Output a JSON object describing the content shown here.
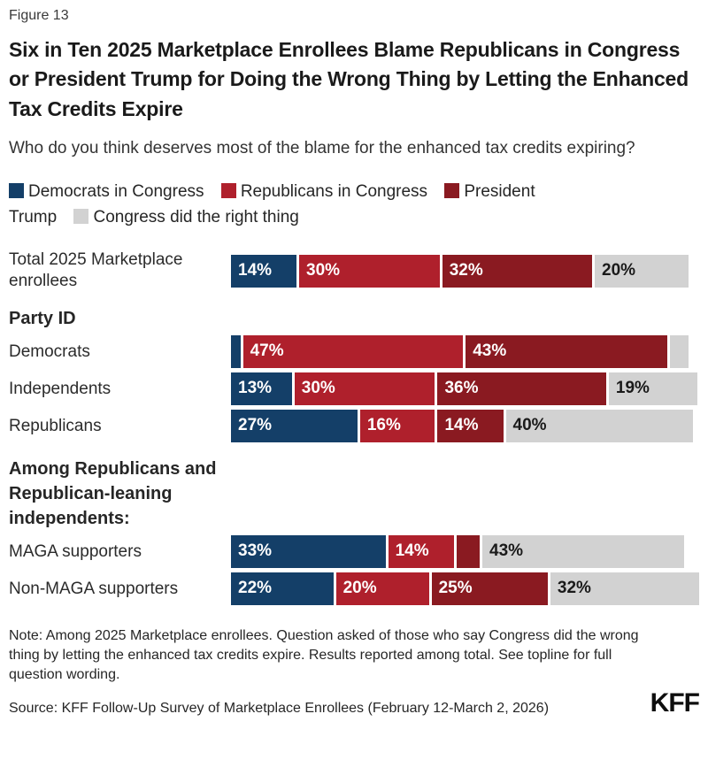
{
  "figure_label": "Figure 13",
  "title": "Six in Ten 2025 Marketplace Enrollees Blame Republicans in Congress or President Trump for Doing the Wrong Thing by Letting the Enhanced Tax Credits Expire",
  "subtitle": "Who do you think deserves most of the blame for the enhanced tax credits expiring?",
  "colors": {
    "democrats": "#143F68",
    "republicans": "#AF202C",
    "trump": "#8A1A21",
    "right_thing": "#D2D2D2",
    "value_label_on_color": "#FFFFFF",
    "value_label_on_gray": "#1A1A1A"
  },
  "legend": {
    "items": [
      {
        "label": "Democrats in Congress",
        "color_key": "democrats"
      },
      {
        "label": "Republicans in Congress",
        "color_key": "republicans"
      },
      {
        "label": "President Trump",
        "color_key": "trump"
      },
      {
        "label": "Congress did the right thing",
        "color_key": "right_thing"
      }
    ]
  },
  "chart_data": {
    "type": "bar",
    "variant": "horizontal-stacked",
    "unit": "percent",
    "x_range": [
      0,
      100
    ],
    "grid": false,
    "legend_position": "top",
    "series_names": [
      "Democrats in Congress",
      "Republicans in Congress",
      "President Trump",
      "Congress did the right thing"
    ],
    "rows": [
      {
        "kind": "bar",
        "category": "Total 2025 Marketplace enrollees",
        "values": [
          14,
          30,
          32,
          20
        ],
        "value_labels": [
          "14%",
          "30%",
          "32%",
          "20%"
        ]
      },
      {
        "kind": "section",
        "label": "Party ID"
      },
      {
        "kind": "bar",
        "category": "Democrats",
        "values": [
          2,
          47,
          43,
          4
        ],
        "value_labels": [
          "",
          "47%",
          "43%",
          ""
        ]
      },
      {
        "kind": "bar",
        "category": "Independents",
        "values": [
          13,
          30,
          36,
          19
        ],
        "value_labels": [
          "13%",
          "30%",
          "36%",
          "19%"
        ]
      },
      {
        "kind": "bar",
        "category": "Republicans",
        "values": [
          27,
          16,
          14,
          40
        ],
        "value_labels": [
          "27%",
          "16%",
          "14%",
          "40%"
        ]
      },
      {
        "kind": "section",
        "label": "Among Republicans and Republican-leaning independents:"
      },
      {
        "kind": "bar",
        "category": "MAGA supporters",
        "values": [
          33,
          14,
          5,
          43
        ],
        "value_labels": [
          "33%",
          "14%",
          "",
          "43%"
        ]
      },
      {
        "kind": "bar",
        "category": "Non-MAGA supporters",
        "values": [
          22,
          20,
          25,
          32
        ],
        "value_labels": [
          "22%",
          "20%",
          "25%",
          "32%"
        ]
      }
    ]
  },
  "note": "Note: Among 2025 Marketplace enrollees. Question asked of those who say Congress did the wrong thing by letting the enhanced tax credits expire. Results reported among total. See topline for full question wording.",
  "source": "Source: KFF Follow-Up Survey of Marketplace Enrollees (February 12-March 2, 2026)",
  "logo_text": "KFF"
}
